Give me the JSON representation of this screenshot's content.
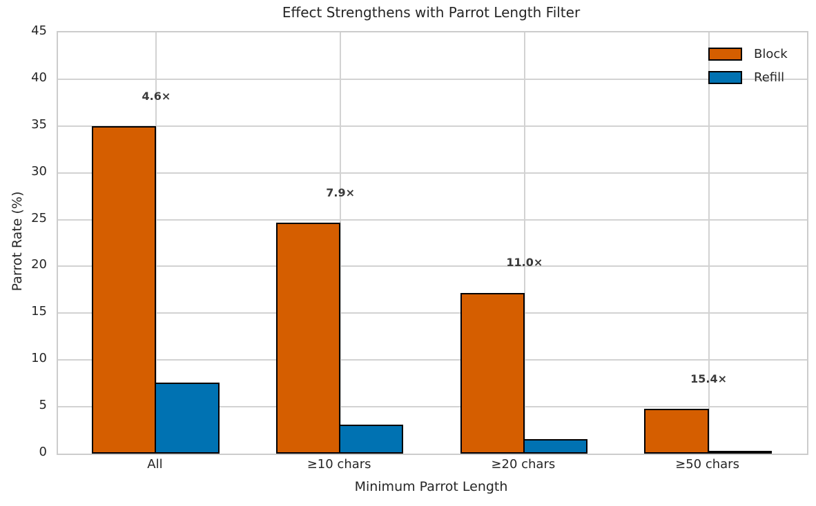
{
  "chart_data": {
    "type": "bar",
    "title": "Effect Strengthens with Parrot Length Filter",
    "xlabel": "Minimum Parrot Length",
    "ylabel": "Parrot Rate (%)",
    "categories": [
      "All",
      "≥10 chars",
      "≥20 chars",
      "≥50 chars"
    ],
    "series": [
      {
        "name": "Block",
        "color": "#d55e00",
        "values": [
          35.0,
          24.7,
          17.2,
          4.8
        ]
      },
      {
        "name": "Refill",
        "color": "#0072b2",
        "values": [
          7.6,
          3.1,
          1.56,
          0.31
        ]
      }
    ],
    "annotations": [
      {
        "text": "4.6×",
        "category_index": 0
      },
      {
        "text": "7.9×",
        "category_index": 1
      },
      {
        "text": "11.0×",
        "category_index": 2
      },
      {
        "text": "15.4×",
        "category_index": 3
      }
    ],
    "ylim": [
      0,
      45
    ],
    "yticks": [
      0,
      5,
      10,
      15,
      20,
      25,
      30,
      35,
      40,
      45
    ],
    "grid": true,
    "legend_position": "upper right",
    "bar_width_fraction": 0.35,
    "bar_edge_color": "#000000",
    "grid_color": "#d2d2d2",
    "text_color": "#262626"
  }
}
